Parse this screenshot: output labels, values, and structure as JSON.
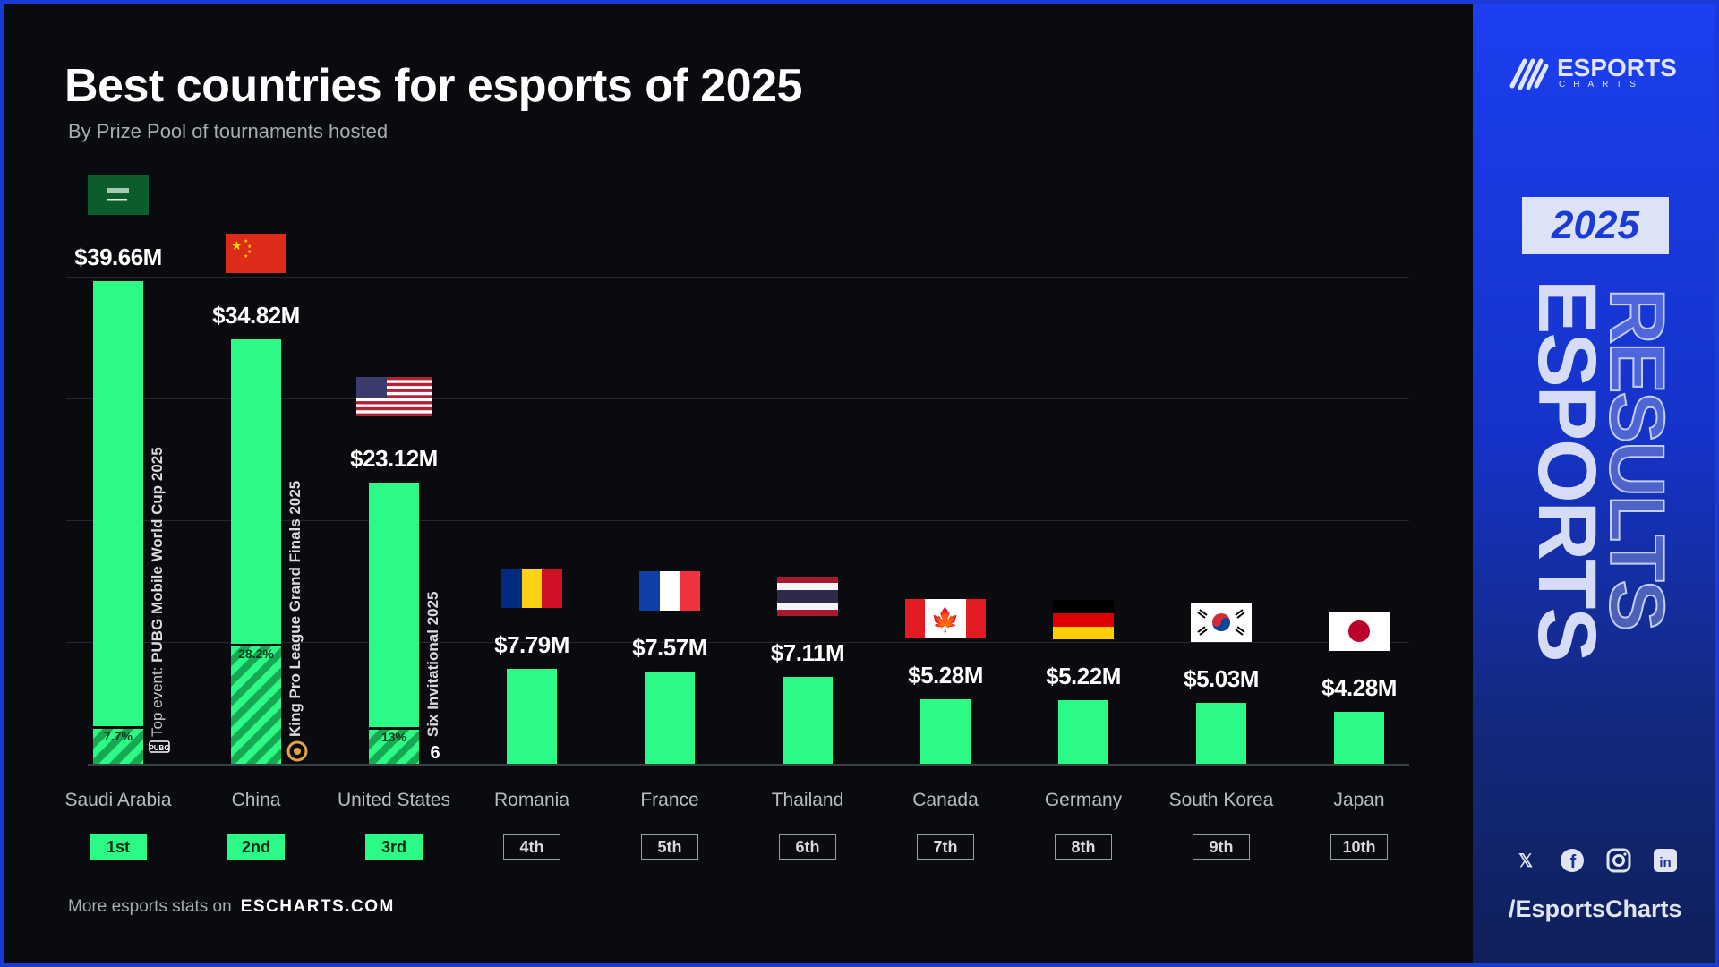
{
  "header": {
    "title": "Best countries for esports of 2025",
    "subtitle": "By Prize Pool of tournaments hosted"
  },
  "chart_data": {
    "type": "bar",
    "title": "Best countries for esports of 2025",
    "subtitle": "By Prize Pool of tournaments hosted",
    "categories": [
      "Saudi Arabia",
      "China",
      "United States",
      "Romania",
      "France",
      "Thailand",
      "Canada",
      "Germany",
      "South Korea",
      "Japan"
    ],
    "values": [
      39.66,
      34.82,
      23.12,
      7.79,
      7.57,
      7.11,
      5.28,
      5.22,
      5.03,
      4.28
    ],
    "value_labels": [
      "$39.66M",
      "$34.82M",
      "$23.12M",
      "$7.79M",
      "$7.57M",
      "$7.11M",
      "$5.28M",
      "$5.22M",
      "$5.03M",
      "$4.28M"
    ],
    "unit": "USD millions",
    "ranks": [
      "1st",
      "2nd",
      "3rd",
      "4th",
      "5th",
      "6th",
      "7th",
      "8th",
      "9th",
      "10th"
    ],
    "ylim": [
      0,
      40
    ],
    "grid": true,
    "bar_color": "#2bfb86",
    "top_events": [
      {
        "prefix": "Top event: ",
        "name": "PUBG Mobile World Cup 2025",
        "share_pct": 7.7,
        "share_label": "7.7%",
        "icon": "pubg-mobile-icon"
      },
      {
        "prefix": "",
        "name": "King Pro League Grand Finals 2025",
        "share_pct": 28.2,
        "share_label": "28.2%",
        "icon": "kpl-icon"
      },
      {
        "prefix": "",
        "name": "Six Invitational 2025",
        "share_pct": 13,
        "share_label": "13%",
        "icon": "rainbow-six-icon"
      }
    ]
  },
  "footer": {
    "text": "More esports stats on",
    "link": "ESCHARTS.COM"
  },
  "sidebar": {
    "logo_text": "ESPORTS",
    "logo_sub": "CHARTS",
    "year": "2025",
    "vertical_1": "ESPORTS",
    "vertical_2": "RESULTS",
    "handle": "/EsportsCharts",
    "social": [
      "x-icon",
      "facebook-icon",
      "instagram-icon",
      "linkedin-icon"
    ]
  },
  "colors": {
    "accent": "#2bfb86",
    "background": "#0a0b0e",
    "brand_blue": "#1a3bd6"
  }
}
